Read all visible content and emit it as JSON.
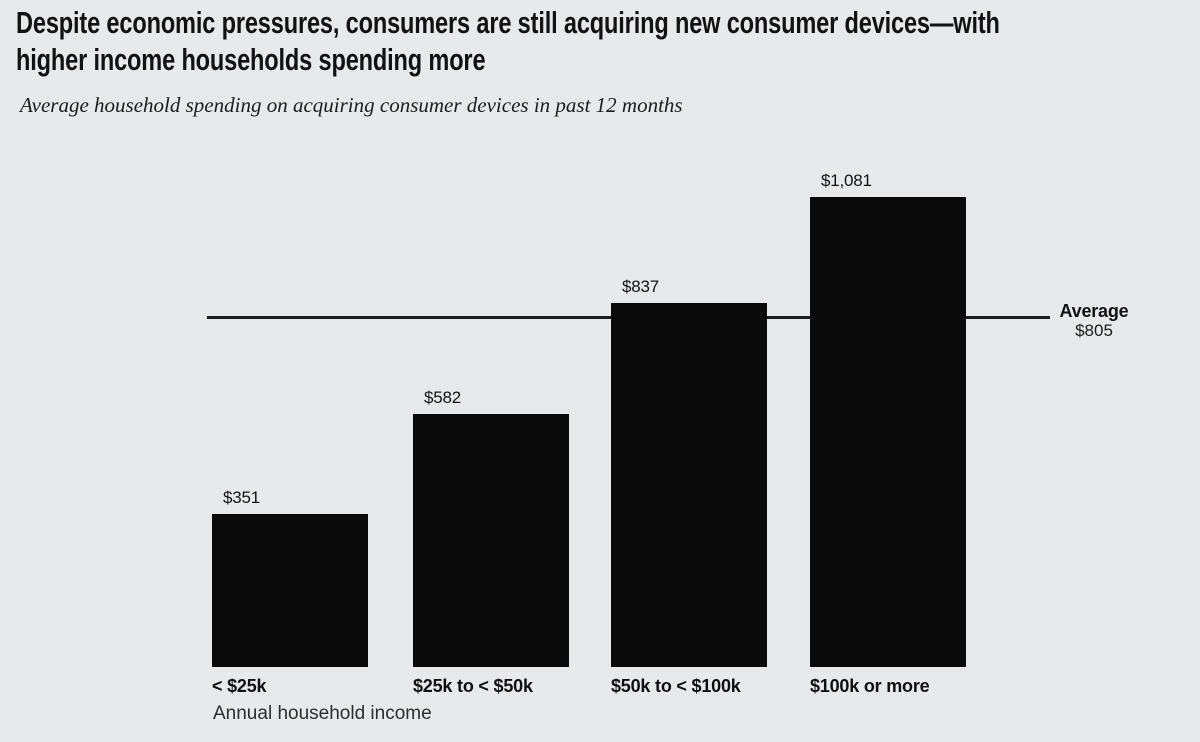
{
  "header": {
    "title_lines": [
      "Despite economic pressures, consumers are still acquiring new consumer devices—with",
      "higher income households spending more"
    ],
    "subtitle": "Average household spending on acquiring consumer devices in past 12 months"
  },
  "chart_data": {
    "type": "bar",
    "title": "Average household spending on acquiring consumer devices in past 12 months",
    "categories": [
      "< $25k",
      "$25k to < $50k",
      "$50k to < $100k",
      "$100k or more"
    ],
    "values": [
      351,
      582,
      837,
      1081
    ],
    "value_labels": [
      "$351",
      "$582",
      "$837",
      "$1,081"
    ],
    "xlabel": "Annual household income",
    "ylabel": "",
    "ylim": [
      0,
      1150
    ],
    "grid": false,
    "legend_position": "none",
    "average_line": {
      "label": "Average",
      "value": 805,
      "value_label": "$805"
    },
    "bar_color": "#0a0a0b",
    "background_color": "#e8e9ea",
    "text_color": "#121212",
    "average_line_color": "#1d1d1d"
  }
}
